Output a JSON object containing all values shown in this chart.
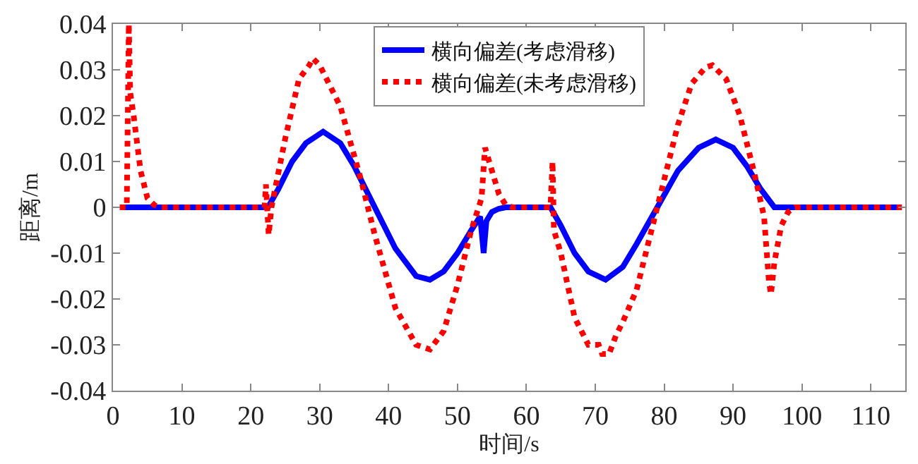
{
  "chart_data": {
    "type": "line",
    "xlabel": "时间/s",
    "ylabel": "距离/m",
    "xlim": [
      0,
      115
    ],
    "xticks": [
      0,
      10,
      20,
      30,
      40,
      50,
      60,
      70,
      80,
      90,
      100,
      110
    ],
    "ylim": [
      -0.04,
      0.04
    ],
    "yticks": [
      {
        "value": -0.04,
        "label": "-0.04"
      },
      {
        "value": -0.03,
        "label": "-0.03"
      },
      {
        "value": -0.02,
        "label": "-0.02"
      },
      {
        "value": -0.01,
        "label": "-0.01"
      },
      {
        "value": 0,
        "label": "0"
      },
      {
        "value": 0.01,
        "label": "0.01"
      },
      {
        "value": 0.02,
        "label": "0.02"
      },
      {
        "value": 0.03,
        "label": "0.03"
      },
      {
        "value": 0.04,
        "label": "0.04"
      }
    ],
    "legend": "top",
    "series": [
      {
        "name": "横向偏差(考虑滑移)",
        "color": "#0000ff",
        "line_style": "solid",
        "x": [
          1,
          22.5,
          24,
          26,
          28,
          30.5,
          33,
          35,
          38,
          41,
          44,
          46,
          48,
          50,
          52,
          53.3,
          53.8,
          54.2,
          55,
          56,
          57,
          63.5,
          65,
          67,
          69,
          71.5,
          74,
          76,
          79,
          82,
          85,
          87.5,
          90,
          92,
          94,
          95,
          96,
          114.5
        ],
        "values": [
          0,
          0,
          0.004,
          0.01,
          0.014,
          0.0165,
          0.014,
          0.009,
          0,
          -0.009,
          -0.015,
          -0.0158,
          -0.014,
          -0.01,
          -0.005,
          -0.002,
          -0.01,
          -0.003,
          -0.001,
          -0.0003,
          0,
          0,
          -0.004,
          -0.01,
          -0.014,
          -0.0158,
          -0.013,
          -0.008,
          0,
          0.008,
          0.013,
          0.0148,
          0.013,
          0.009,
          0.004,
          0.002,
          0,
          0
        ]
      },
      {
        "name": "横向偏差(未考虑滑移)",
        "color": "#ff0000",
        "line_style": "dotted",
        "x": [
          1,
          2,
          2.3,
          2.5,
          3,
          4,
          5,
          6,
          7,
          22,
          22.2,
          22.6,
          23,
          25,
          27,
          28.5,
          29,
          30,
          33,
          36,
          38,
          41,
          44,
          46,
          48,
          50,
          52,
          53.5,
          54,
          55,
          56,
          57,
          58,
          63.5,
          63.8,
          64,
          65,
          67,
          69,
          70.5,
          71,
          72,
          73,
          74,
          76,
          78,
          80,
          82,
          84,
          86,
          87,
          89,
          91,
          93,
          94.5,
          95.2,
          95.5,
          96,
          97,
          98,
          99,
          114.5
        ],
        "values": [
          0,
          0,
          0.04,
          0.025,
          0.02,
          0.008,
          0.002,
          0.0005,
          0,
          0,
          0.005,
          -0.006,
          0,
          0.015,
          0.028,
          0.031,
          0.0325,
          0.031,
          0.022,
          0.006,
          -0.006,
          -0.022,
          -0.03,
          -0.031,
          -0.027,
          -0.017,
          -0.005,
          0.002,
          0.013,
          0.008,
          0.003,
          0.0005,
          0,
          0,
          0.01,
          -0.005,
          -0.01,
          -0.024,
          -0.03,
          -0.03,
          -0.032,
          -0.032,
          -0.028,
          -0.025,
          -0.018,
          -0.006,
          0.006,
          0.018,
          0.027,
          0.0305,
          0.031,
          0.028,
          0.02,
          0.008,
          -0.002,
          -0.016,
          -0.019,
          -0.012,
          -0.004,
          -0.001,
          0,
          0
        ]
      }
    ]
  }
}
